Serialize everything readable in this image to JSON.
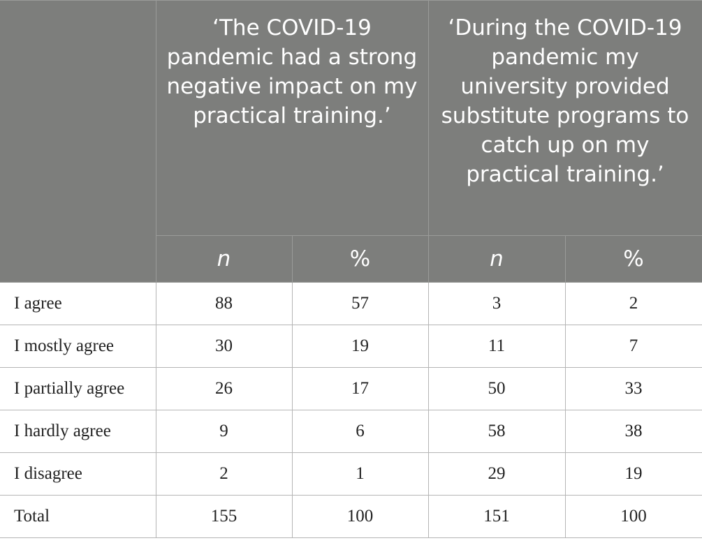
{
  "header": {
    "col1_question": "‘The COVID-19 pandemic had a strong negative impact on my practical training.’",
    "col2_question": "‘During the COVID-19 pandemic my university provided substitute programs to catch up on my practical training.’",
    "sub_n": "n",
    "sub_pct": "%"
  },
  "rows": [
    {
      "label": "I agree",
      "q1_n": "88",
      "q1_pct": "57",
      "q2_n": "3",
      "q2_pct": "2"
    },
    {
      "label": "I mostly agree",
      "q1_n": "30",
      "q1_pct": "19",
      "q2_n": "11",
      "q2_pct": "7"
    },
    {
      "label": "I partially agree",
      "q1_n": "26",
      "q1_pct": "17",
      "q2_n": "50",
      "q2_pct": "33"
    },
    {
      "label": "I hardly agree",
      "q1_n": "9",
      "q1_pct": "6",
      "q2_n": "58",
      "q2_pct": "38"
    },
    {
      "label": "I disagree",
      "q1_n": "2",
      "q1_pct": "1",
      "q2_n": "29",
      "q2_pct": "19"
    },
    {
      "label": "Total",
      "q1_n": "155",
      "q1_pct": "100",
      "q2_n": "151",
      "q2_pct": "100"
    }
  ],
  "colors": {
    "header_bg": "#7d7e7c",
    "header_text": "#ffffff",
    "body_text": "#222222",
    "grid": "#b5b5b5"
  }
}
